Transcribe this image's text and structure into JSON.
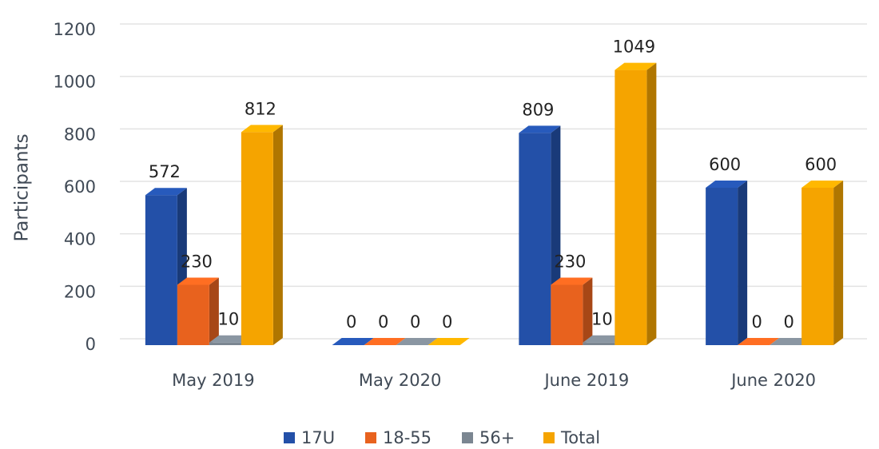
{
  "chart_data": {
    "type": "bar3d",
    "y_label": "Participants",
    "categories": [
      "May 2019",
      "May 2020",
      "June 2019",
      "June 2020"
    ],
    "series": [
      {
        "name": "17U",
        "color": "#2350a8",
        "values": [
          572,
          0,
          809,
          600
        ]
      },
      {
        "name": "18-55",
        "color": "#e8621e",
        "values": [
          230,
          0,
          230,
          0
        ]
      },
      {
        "name": "56+",
        "color": "#7b8691",
        "values": [
          10,
          0,
          10,
          0
        ]
      },
      {
        "name": "Total",
        "color": "#f5a400",
        "values": [
          812,
          0,
          1049,
          600
        ]
      }
    ],
    "ylim": [
      0,
      1200
    ],
    "yticks": [
      0,
      200,
      400,
      600,
      800,
      1000,
      1200
    ],
    "grid": true,
    "legend": "bottom"
  }
}
